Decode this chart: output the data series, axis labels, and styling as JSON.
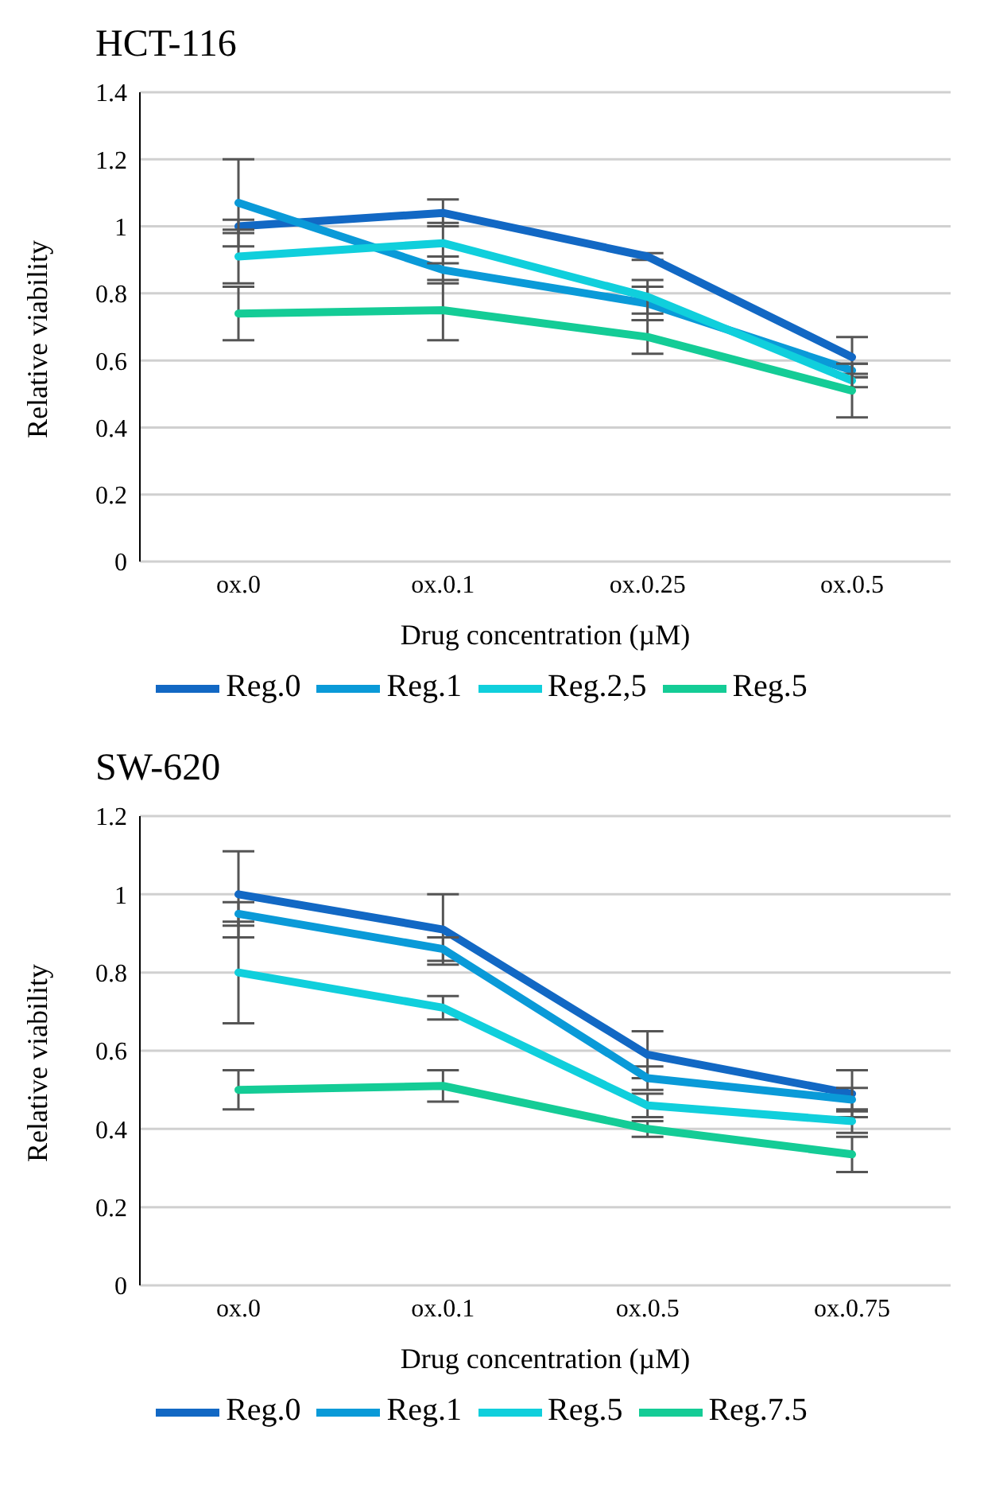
{
  "chart_data": [
    {
      "type": "line",
      "title": "HCT-116",
      "xlabel": "Drug concentration (µM)",
      "ylabel": "Relative viability",
      "categories": [
        "ox.0",
        "ox.0.1",
        "ox.0.25",
        "ox.0.5"
      ],
      "ylim": [
        0,
        1.4
      ],
      "yticks": [
        0,
        0.2,
        0.4,
        0.6,
        0.8,
        1,
        1.2,
        1.4
      ],
      "grid": "y",
      "legend": "bottom",
      "marker": "none",
      "line_style": "solid",
      "series": [
        {
          "name": "Reg.0",
          "color": "#1268c4",
          "values": [
            1.0,
            1.04,
            0.91,
            0.61
          ],
          "errors": [
            0.02,
            0.04,
            0.01,
            0.06
          ]
        },
        {
          "name": "Reg.1",
          "color": "#0a9ad8",
          "values": [
            1.07,
            0.87,
            0.77,
            0.57
          ],
          "errors": [
            0.13,
            0.04,
            0.05,
            0.02
          ]
        },
        {
          "name": "Reg.2,5",
          "color": "#10cfdc",
          "values": [
            0.91,
            0.95,
            0.79,
            0.54
          ],
          "errors": [
            0.08,
            0.06,
            0.05,
            0.02
          ]
        },
        {
          "name": "Reg.5",
          "color": "#14cc96",
          "values": [
            0.74,
            0.75,
            0.67,
            0.51
          ],
          "errors": [
            0.08,
            0.09,
            0.05,
            0.08
          ]
        }
      ]
    },
    {
      "type": "line",
      "title": "SW-620",
      "xlabel": "Drug concentration (µM)",
      "ylabel": "Relative viability",
      "categories": [
        "ox.0",
        "ox.0.1",
        "ox.0.5",
        "ox.0.75"
      ],
      "ylim": [
        0,
        1.2
      ],
      "yticks": [
        0,
        0.2,
        0.4,
        0.6,
        0.8,
        1,
        1.2
      ],
      "grid": "y",
      "legend": "bottom",
      "marker": "none",
      "line_style": "solid",
      "series": [
        {
          "name": "Reg.0",
          "color": "#1268c4",
          "values": [
            1.0,
            0.91,
            0.59,
            0.49
          ],
          "errors": [
            0.11,
            0.09,
            0.06,
            0.06
          ]
        },
        {
          "name": "Reg.1",
          "color": "#0a9ad8",
          "values": [
            0.95,
            0.86,
            0.53,
            0.475
          ],
          "errors": [
            0.03,
            0.03,
            0.03,
            0.03
          ]
        },
        {
          "name": "Reg.5",
          "color": "#10cfdc",
          "values": [
            0.8,
            0.71,
            0.46,
            0.42
          ],
          "errors": [
            0.13,
            0.03,
            0.03,
            0.03
          ]
        },
        {
          "name": "Reg.7.5",
          "color": "#14cc96",
          "values": [
            0.5,
            0.51,
            0.4,
            0.335
          ],
          "errors": [
            0.05,
            0.04,
            0.02,
            0.045
          ]
        }
      ]
    }
  ]
}
